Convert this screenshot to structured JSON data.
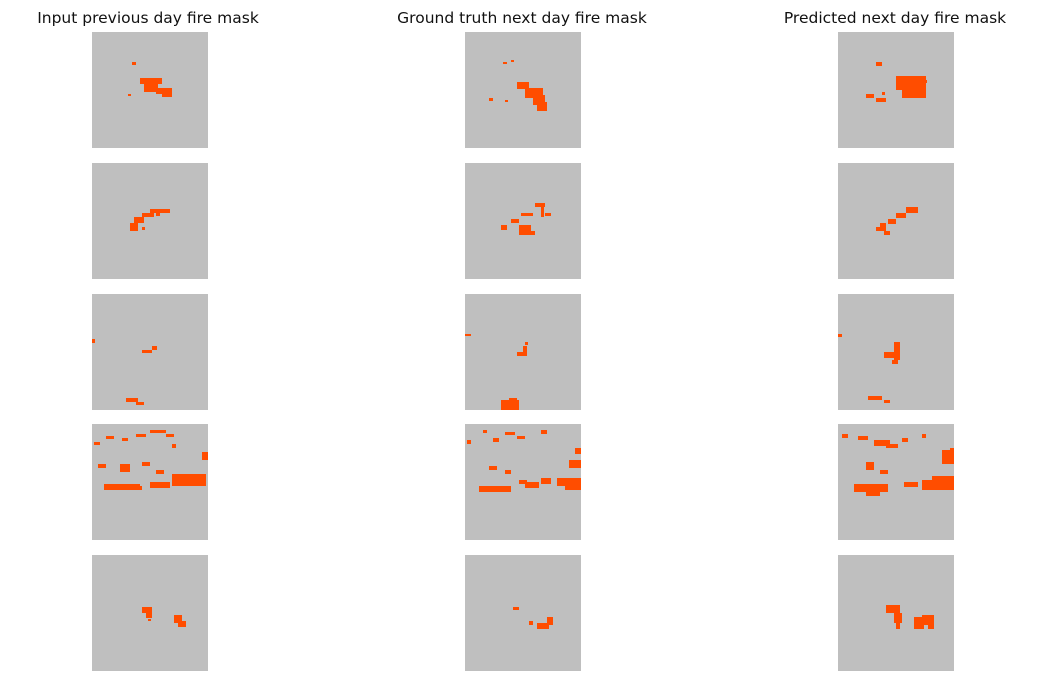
{
  "titles": [
    "Input previous day fire mask",
    "Ground truth next day fire mask",
    "Predicted next day fire mask"
  ],
  "colors": {
    "background": "#bfbfbf",
    "fire": "#ff4d00"
  },
  "chart_data": {
    "type": "image-grid",
    "rows": 5,
    "columns": 3,
    "cell_content": "binary fire mask, orange = fire, gray = no fire"
  }
}
